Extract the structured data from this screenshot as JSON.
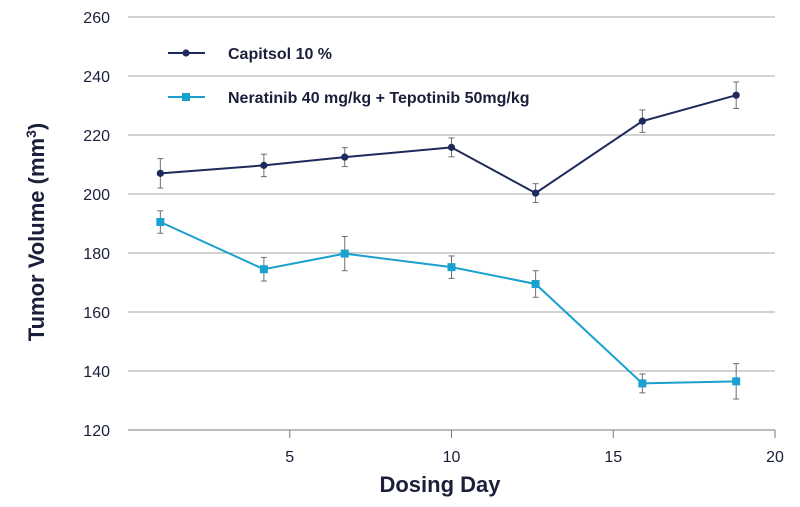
{
  "chart_data": {
    "type": "line",
    "xlabel": "Dosing Day",
    "ylabel_main": "Tumor Volume (mm",
    "ylabel_sup": "3",
    "ylabel_close": ")",
    "xlim": [
      0,
      20
    ],
    "ylim": [
      120,
      260
    ],
    "xticks": [
      5,
      10,
      15,
      20
    ],
    "yticks": [
      120,
      140,
      160,
      180,
      200,
      220,
      240,
      260
    ],
    "grid": "horizontal",
    "legend_position": "top-left",
    "series": [
      {
        "name": "Capitsol 10 %",
        "color": "#1f2a5c",
        "marker": "circle",
        "x": [
          1,
          4.2,
          6.7,
          10,
          12.6,
          15.9,
          18.8
        ],
        "y": [
          207,
          209.7,
          212.5,
          215.8,
          200.3,
          224.7,
          233.5
        ],
        "err": [
          5,
          3.8,
          3.2,
          3.2,
          3.2,
          3.8,
          4.5
        ]
      },
      {
        "name": "Neratinib 40 mg/kg + Tepotinib 50mg/kg",
        "color": "#1aa1cf",
        "marker": "square",
        "x": [
          1,
          4.2,
          6.7,
          10,
          12.6,
          15.9,
          18.8
        ],
        "y": [
          190.5,
          174.5,
          179.8,
          175.2,
          169.5,
          135.8,
          136.5
        ],
        "err": [
          3.8,
          4,
          5.8,
          3.8,
          4.5,
          3.2,
          6
        ]
      }
    ]
  }
}
